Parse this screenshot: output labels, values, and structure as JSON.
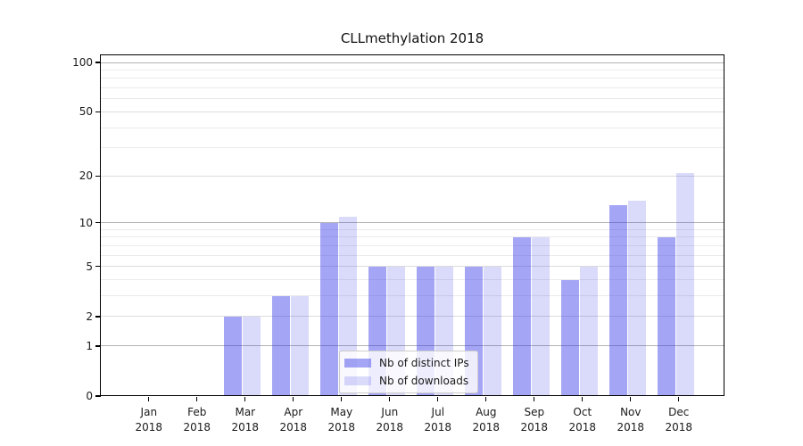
{
  "chart_data": {
    "type": "bar",
    "title": "CLLmethylation 2018",
    "year_label": "2018",
    "categories": [
      "Jan",
      "Feb",
      "Mar",
      "Apr",
      "May",
      "Jun",
      "Jul",
      "Aug",
      "Sep",
      "Oct",
      "Nov",
      "Dec"
    ],
    "series": [
      {
        "name": "Nb of distinct IPs",
        "base_color": "#3838e8",
        "alpha": 0.45,
        "values": [
          0,
          0,
          2,
          3,
          10,
          5,
          5,
          5,
          8,
          4,
          13,
          8
        ]
      },
      {
        "name": "Nb of downloads",
        "base_color": "#3838e8",
        "alpha": 0.19,
        "values": [
          0,
          0,
          2,
          3,
          11,
          5,
          5,
          5,
          8,
          5,
          14,
          21
        ]
      }
    ],
    "yscale": "log1p",
    "ylim": [
      0,
      110
    ],
    "y_major_ticks": [
      0,
      1,
      2,
      5,
      10,
      20,
      50,
      100
    ],
    "y_minor_gridlines": [
      3,
      4,
      6,
      7,
      8,
      9,
      30,
      40,
      60,
      70,
      80,
      90
    ],
    "grid": "on",
    "legend_position": "lower center",
    "colors": {
      "decade_gridline": "#b3b3b3",
      "mid_gridline": "#dcdcdc",
      "minor_gridline": "#ebebeb",
      "axis_frame": "#000000",
      "text": "#1a1a1a",
      "legend_border": "#cccccc"
    }
  }
}
